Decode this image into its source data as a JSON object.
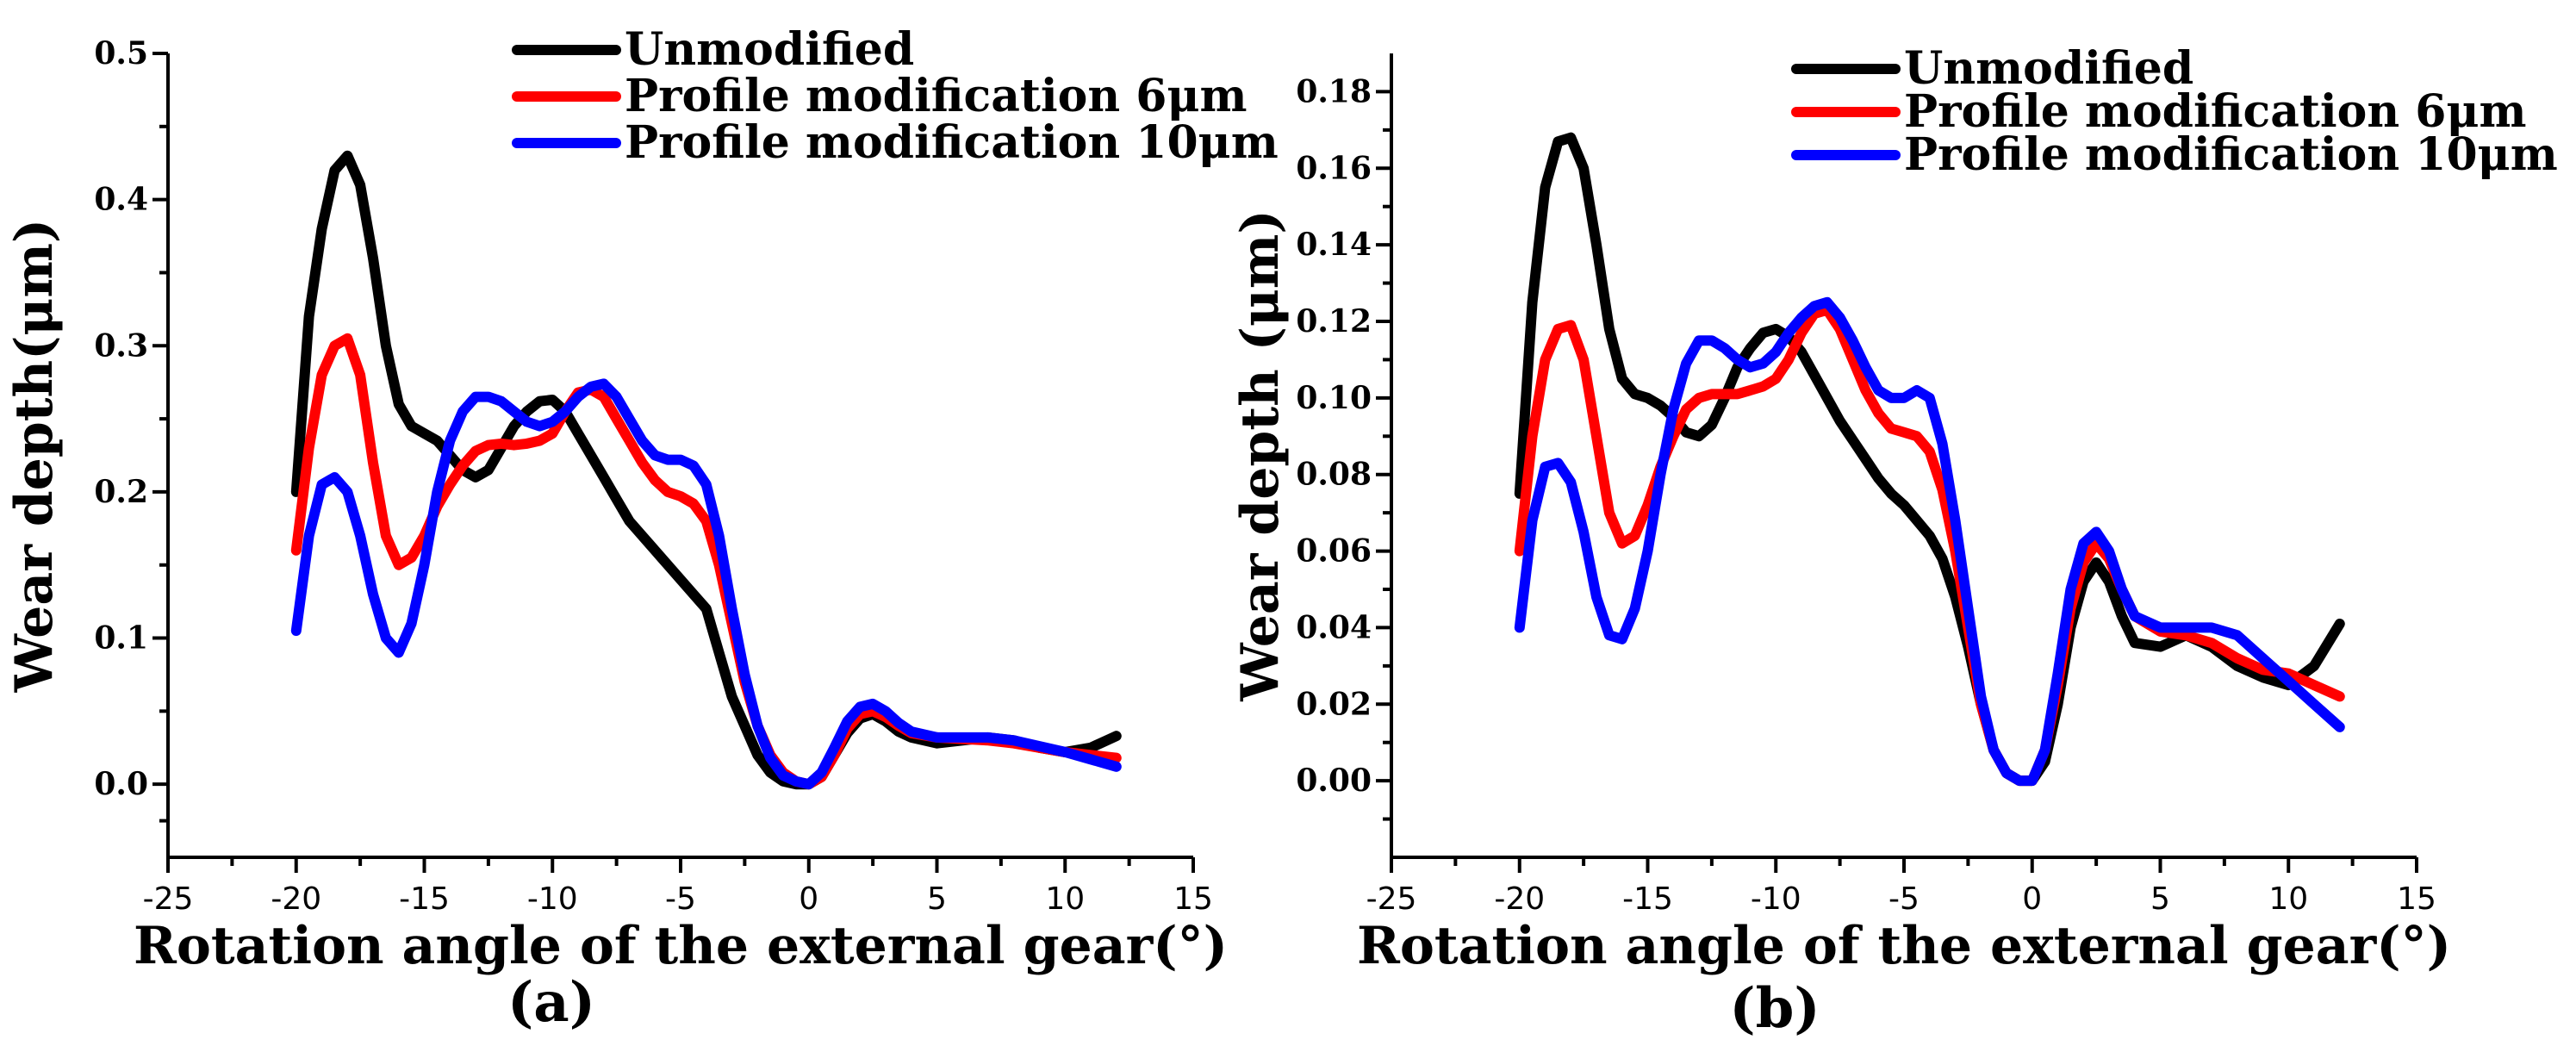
{
  "chart_data": [
    {
      "type": "line",
      "panel_label": "(a)",
      "xlabel": "Rotation angle of the external gear(°)",
      "ylabel": "Wear depth(μm)",
      "xlim": [
        -25,
        15
      ],
      "ylim": [
        -0.05,
        0.5
      ],
      "xticks": [
        -25,
        -20,
        -15,
        -10,
        -5,
        0,
        5,
        10,
        15
      ],
      "yticks": [
        0.0,
        0.1,
        0.2,
        0.3,
        0.4,
        0.5
      ],
      "ytick_labels": [
        "0.0",
        "0.1",
        "0.2",
        "0.3",
        "0.4",
        "0.5"
      ],
      "grid": false,
      "legend_position": "top-right",
      "series": [
        {
          "name": "Unmodified",
          "color": "#000000",
          "x": [
            -20,
            -19.5,
            -19,
            -18.5,
            -18,
            -17.5,
            -17,
            -16.5,
            -16,
            -15.5,
            -15,
            -14.5,
            -14,
            -13.5,
            -13,
            -12.5,
            -12,
            -11.5,
            -11,
            -10.5,
            -10,
            -9.5,
            -9,
            -8.5,
            -8,
            -7.5,
            -7,
            -6.5,
            -6,
            -5.5,
            -5,
            -4.5,
            -4,
            -3.5,
            -3,
            -2.5,
            -2,
            -1.5,
            -1,
            -0.5,
            0,
            0.5,
            1,
            1.5,
            2,
            2.5,
            3,
            3.5,
            4,
            5,
            6,
            7,
            8,
            9,
            10,
            11,
            12
          ],
          "y": [
            0.2,
            0.32,
            0.38,
            0.42,
            0.43,
            0.41,
            0.36,
            0.3,
            0.26,
            0.245,
            0.24,
            0.235,
            0.225,
            0.215,
            0.21,
            0.215,
            0.23,
            0.245,
            0.255,
            0.262,
            0.263,
            0.255,
            0.24,
            0.225,
            0.21,
            0.195,
            0.18,
            0.17,
            0.16,
            0.15,
            0.14,
            0.13,
            0.12,
            0.09,
            0.06,
            0.04,
            0.02,
            0.008,
            0.002,
            0.0,
            0.0,
            0.005,
            0.02,
            0.035,
            0.045,
            0.048,
            0.043,
            0.036,
            0.032,
            0.028,
            0.03,
            0.032,
            0.03,
            0.025,
            0.022,
            0.025,
            0.033
          ]
        },
        {
          "name": "Profile modification 6μm",
          "color": "#ff0000",
          "x": [
            -20,
            -19.5,
            -19,
            -18.5,
            -18,
            -17.5,
            -17,
            -16.5,
            -16,
            -15.5,
            -15,
            -14.5,
            -14,
            -13.5,
            -13,
            -12.5,
            -12,
            -11.5,
            -11,
            -10.5,
            -10,
            -9.5,
            -9,
            -8.5,
            -8,
            -7.5,
            -7,
            -6.5,
            -6,
            -5.5,
            -5,
            -4.5,
            -4,
            -3.5,
            -3,
            -2.5,
            -2,
            -1.5,
            -1,
            -0.5,
            0,
            0.5,
            1,
            1.5,
            2,
            2.5,
            3,
            3.5,
            4,
            5,
            6,
            7,
            8,
            9,
            10,
            11,
            12
          ],
          "y": [
            0.16,
            0.23,
            0.28,
            0.3,
            0.305,
            0.28,
            0.22,
            0.17,
            0.15,
            0.155,
            0.17,
            0.19,
            0.205,
            0.218,
            0.228,
            0.232,
            0.233,
            0.232,
            0.233,
            0.235,
            0.24,
            0.255,
            0.268,
            0.27,
            0.265,
            0.25,
            0.235,
            0.22,
            0.208,
            0.2,
            0.197,
            0.192,
            0.18,
            0.15,
            0.11,
            0.07,
            0.04,
            0.02,
            0.008,
            0.002,
            0.0,
            0.005,
            0.02,
            0.038,
            0.048,
            0.05,
            0.046,
            0.04,
            0.035,
            0.032,
            0.031,
            0.03,
            0.028,
            0.025,
            0.022,
            0.02,
            0.018
          ]
        },
        {
          "name": "Profile modification 10μm",
          "color": "#0000ff",
          "x": [
            -20,
            -19.5,
            -19,
            -18.5,
            -18,
            -17.5,
            -17,
            -16.5,
            -16,
            -15.5,
            -15,
            -14.5,
            -14,
            -13.5,
            -13,
            -12.5,
            -12,
            -11.5,
            -11,
            -10.5,
            -10,
            -9.5,
            -9,
            -8.5,
            -8,
            -7.5,
            -7,
            -6.5,
            -6,
            -5.5,
            -5,
            -4.5,
            -4,
            -3.5,
            -3,
            -2.5,
            -2,
            -1.5,
            -1,
            -0.5,
            0,
            0.5,
            1,
            1.5,
            2,
            2.5,
            3,
            3.5,
            4,
            5,
            6,
            7,
            8,
            9,
            10,
            11,
            12
          ],
          "y": [
            0.105,
            0.17,
            0.205,
            0.21,
            0.2,
            0.17,
            0.13,
            0.1,
            0.09,
            0.11,
            0.15,
            0.2,
            0.235,
            0.255,
            0.265,
            0.265,
            0.262,
            0.255,
            0.248,
            0.245,
            0.248,
            0.255,
            0.265,
            0.272,
            0.274,
            0.265,
            0.25,
            0.235,
            0.225,
            0.222,
            0.222,
            0.218,
            0.205,
            0.17,
            0.12,
            0.075,
            0.04,
            0.018,
            0.006,
            0.002,
            0.0,
            0.008,
            0.025,
            0.043,
            0.053,
            0.055,
            0.05,
            0.042,
            0.036,
            0.032,
            0.032,
            0.032,
            0.03,
            0.026,
            0.022,
            0.017,
            0.012
          ]
        }
      ]
    },
    {
      "type": "line",
      "panel_label": "(b)",
      "xlabel": "Rotation angle of the external gear(°)",
      "ylabel": "Wear depth (μm)",
      "xlim": [
        -25,
        15
      ],
      "ylim": [
        -0.02,
        0.19
      ],
      "xticks": [
        -25,
        -20,
        -15,
        -10,
        -5,
        0,
        5,
        10,
        15
      ],
      "yticks": [
        0.0,
        0.02,
        0.04,
        0.06,
        0.08,
        0.1,
        0.12,
        0.14,
        0.16,
        0.18
      ],
      "ytick_labels": [
        "0.00",
        "0.02",
        "0.04",
        "0.06",
        "0.08",
        "0.10",
        "0.12",
        "0.14",
        "0.16",
        "0.18"
      ],
      "grid": false,
      "legend_position": "top-right",
      "series": [
        {
          "name": "Unmodified",
          "color": "#000000",
          "x": [
            -20,
            -19.5,
            -19,
            -18.5,
            -18,
            -17.5,
            -17,
            -16.5,
            -16,
            -15.5,
            -15,
            -14.5,
            -14,
            -13.5,
            -13,
            -12.5,
            -12,
            -11.5,
            -11,
            -10.5,
            -10,
            -9.5,
            -9,
            -8.5,
            -8,
            -7.5,
            -7,
            -6.5,
            -6,
            -5.5,
            -5,
            -4.5,
            -4,
            -3.5,
            -3,
            -2.5,
            -2,
            -1.5,
            -1,
            -0.5,
            0,
            0.5,
            1,
            1.5,
            2,
            2.5,
            3,
            3.5,
            4,
            5,
            6,
            7,
            8,
            9,
            10,
            11,
            12
          ],
          "y": [
            0.075,
            0.125,
            0.155,
            0.167,
            0.168,
            0.16,
            0.14,
            0.118,
            0.105,
            0.101,
            0.1,
            0.098,
            0.095,
            0.091,
            0.09,
            0.093,
            0.1,
            0.108,
            0.113,
            0.117,
            0.118,
            0.116,
            0.112,
            0.106,
            0.1,
            0.094,
            0.089,
            0.084,
            0.079,
            0.075,
            0.072,
            0.068,
            0.064,
            0.058,
            0.048,
            0.035,
            0.02,
            0.008,
            0.002,
            0.0,
            0.0,
            0.005,
            0.02,
            0.04,
            0.052,
            0.057,
            0.052,
            0.043,
            0.036,
            0.035,
            0.038,
            0.035,
            0.03,
            0.027,
            0.025,
            0.03,
            0.041
          ]
        },
        {
          "name": "Profile modification 6μm",
          "color": "#ff0000",
          "x": [
            -20,
            -19.5,
            -19,
            -18.5,
            -18,
            -17.5,
            -17,
            -16.5,
            -16,
            -15.5,
            -15,
            -14.5,
            -14,
            -13.5,
            -13,
            -12.5,
            -12,
            -11.5,
            -11,
            -10.5,
            -10,
            -9.5,
            -9,
            -8.5,
            -8,
            -7.5,
            -7,
            -6.5,
            -6,
            -5.5,
            -5,
            -4.5,
            -4,
            -3.5,
            -3,
            -2.5,
            -2,
            -1.5,
            -1,
            -0.5,
            0,
            0.5,
            1,
            1.5,
            2,
            2.5,
            3,
            3.5,
            4,
            5,
            6,
            7,
            8,
            9,
            10,
            11,
            12
          ],
          "y": [
            0.06,
            0.09,
            0.11,
            0.118,
            0.119,
            0.11,
            0.09,
            0.07,
            0.062,
            0.064,
            0.072,
            0.082,
            0.09,
            0.097,
            0.1,
            0.101,
            0.101,
            0.101,
            0.102,
            0.103,
            0.105,
            0.11,
            0.117,
            0.122,
            0.123,
            0.118,
            0.11,
            0.102,
            0.096,
            0.092,
            0.091,
            0.09,
            0.086,
            0.076,
            0.06,
            0.04,
            0.02,
            0.008,
            0.002,
            0.0,
            0.0,
            0.008,
            0.025,
            0.045,
            0.057,
            0.062,
            0.058,
            0.05,
            0.043,
            0.039,
            0.038,
            0.036,
            0.032,
            0.029,
            0.028,
            0.025,
            0.022
          ]
        },
        {
          "name": "Profile modification 10μm",
          "color": "#0000ff",
          "x": [
            -20,
            -19.5,
            -19,
            -18.5,
            -18,
            -17.5,
            -17,
            -16.5,
            -16,
            -15.5,
            -15,
            -14.5,
            -14,
            -13.5,
            -13,
            -12.5,
            -12,
            -11.5,
            -11,
            -10.5,
            -10,
            -9.5,
            -9,
            -8.5,
            -8,
            -7.5,
            -7,
            -6.5,
            -6,
            -5.5,
            -5,
            -4.5,
            -4,
            -3.5,
            -3,
            -2.5,
            -2,
            -1.5,
            -1,
            -0.5,
            0,
            0.5,
            1,
            1.5,
            2,
            2.5,
            3,
            3.5,
            4,
            5,
            6,
            7,
            8,
            9,
            10,
            11,
            12
          ],
          "y": [
            0.04,
            0.068,
            0.082,
            0.083,
            0.078,
            0.065,
            0.048,
            0.038,
            0.037,
            0.045,
            0.06,
            0.08,
            0.097,
            0.109,
            0.115,
            0.115,
            0.113,
            0.11,
            0.108,
            0.109,
            0.112,
            0.117,
            0.121,
            0.124,
            0.125,
            0.121,
            0.115,
            0.108,
            0.102,
            0.1,
            0.1,
            0.102,
            0.1,
            0.088,
            0.068,
            0.045,
            0.022,
            0.008,
            0.002,
            0.0,
            0.0,
            0.008,
            0.028,
            0.05,
            0.062,
            0.065,
            0.06,
            0.05,
            0.043,
            0.04,
            0.04,
            0.04,
            0.038,
            0.032,
            0.026,
            0.02,
            0.014
          ]
        }
      ]
    }
  ]
}
